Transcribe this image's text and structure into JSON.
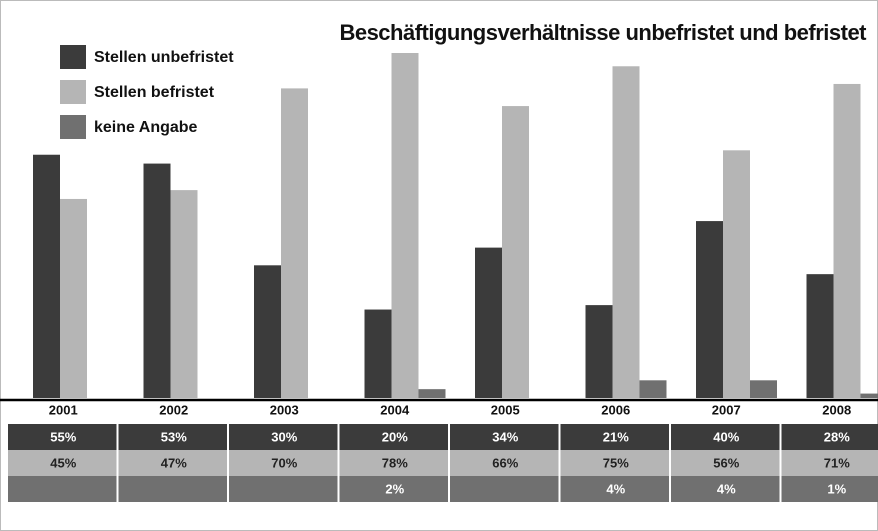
{
  "chart_data": {
    "type": "bar",
    "title": "Beschäftigungsverhältnisse unbefristet und befristet",
    "categories": [
      "2001",
      "2002",
      "2003",
      "2004",
      "2005",
      "2006",
      "2007",
      "2008"
    ],
    "series": [
      {
        "name": "Stellen unbefristet",
        "color": "#3b3b3b",
        "text_color": "#ffffff",
        "values": [
          55,
          53,
          30,
          20,
          34,
          21,
          40,
          28
        ],
        "value_labels": [
          "55%",
          "53%",
          "30%",
          "20%",
          "34%",
          "21%",
          "40%",
          "28%"
        ]
      },
      {
        "name": "Stellen befristet",
        "color": "#b5b5b5",
        "text_color": "#222222",
        "values": [
          45,
          47,
          70,
          78,
          66,
          75,
          56,
          71
        ],
        "value_labels": [
          "45%",
          "47%",
          "70%",
          "78%",
          "66%",
          "75%",
          "56%",
          "71%"
        ]
      },
      {
        "name": "keine Angabe",
        "color": "#707070",
        "text_color": "#ffffff",
        "values": [
          null,
          null,
          null,
          2,
          null,
          4,
          4,
          1
        ],
        "value_labels": [
          null,
          null,
          null,
          "2%",
          null,
          "4%",
          "4%",
          "1%"
        ]
      }
    ],
    "legend": "upper left"
  }
}
